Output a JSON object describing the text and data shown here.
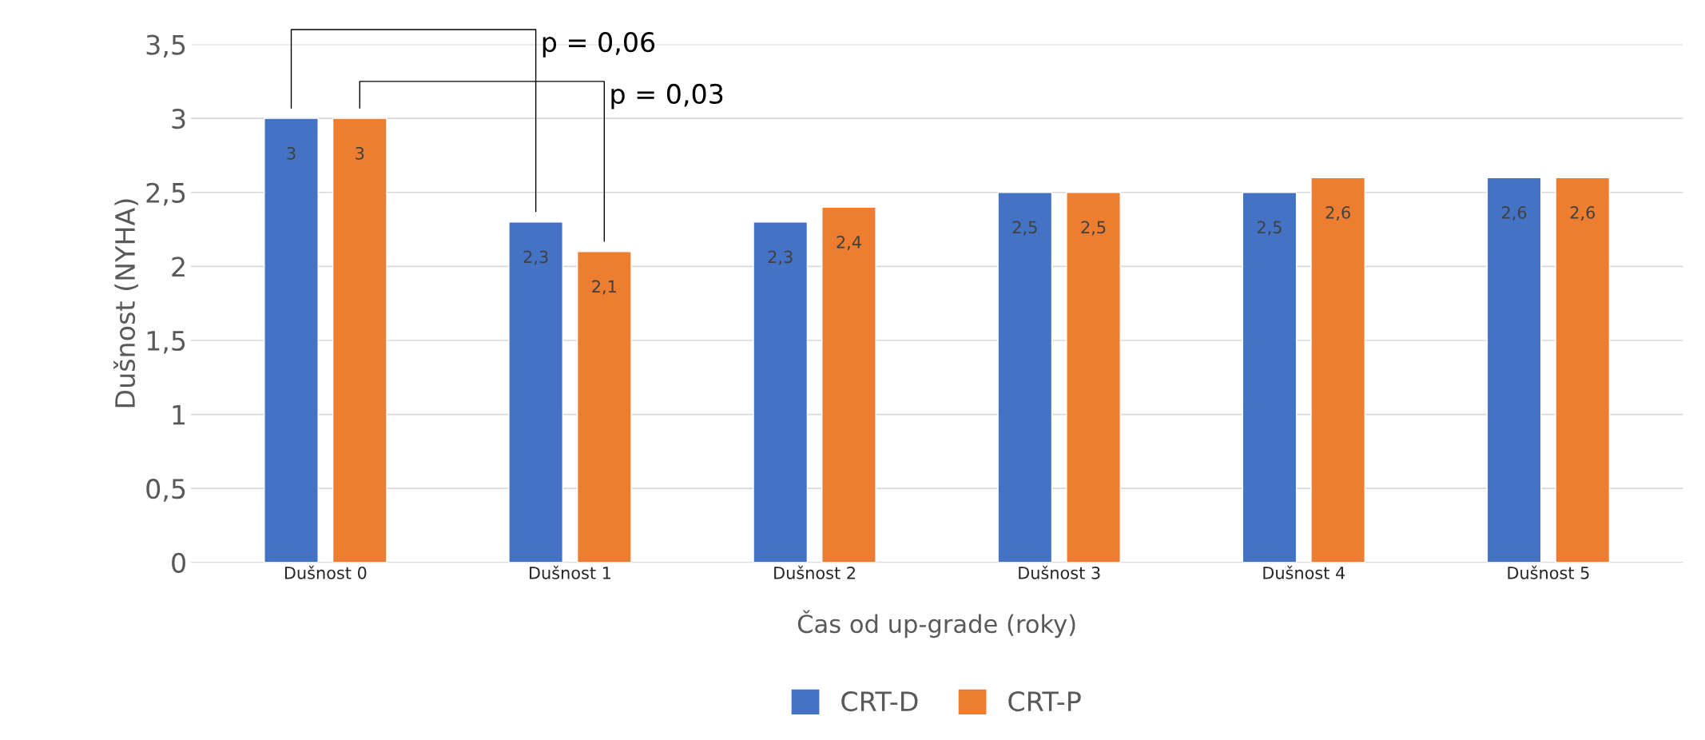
{
  "chart_data": {
    "type": "bar",
    "xlabel": "Čas od up-grade (roky)",
    "ylabel": "Dušnost (NYHA)",
    "categories": [
      "Dušnost 0",
      "Dušnost 1",
      "Dušnost 2",
      "Dušnost 3",
      "Dušnost 4",
      "Dušnost 5"
    ],
    "series": [
      {
        "name": "CRT-D",
        "color": "#4472c4",
        "values": [
          3,
          2.3,
          2.3,
          2.5,
          2.5,
          2.6
        ],
        "value_labels": [
          "3",
          "2,3",
          "2,3",
          "2,5",
          "2,5",
          "2,6"
        ]
      },
      {
        "name": "CRT-P",
        "color": "#ed7d31",
        "values": [
          3,
          2.1,
          2.4,
          2.5,
          2.6,
          2.6
        ],
        "value_labels": [
          "3",
          "2,1",
          "2,4",
          "2,5",
          "2,6",
          "2,6"
        ]
      }
    ],
    "ylim": [
      0,
      3.5
    ],
    "yticks": [
      0,
      {
        "value": 0.5,
        "label": "0,5"
      },
      1,
      {
        "value": 1.5,
        "label": "1,5"
      },
      2,
      {
        "value": 2.5,
        "label": "2,5"
      },
      3,
      {
        "value": 3.5,
        "label": "3,5"
      }
    ],
    "grid": "y",
    "legend": "bottom",
    "annotations": [
      "p = 0,06",
      "p = 0,03"
    ]
  }
}
